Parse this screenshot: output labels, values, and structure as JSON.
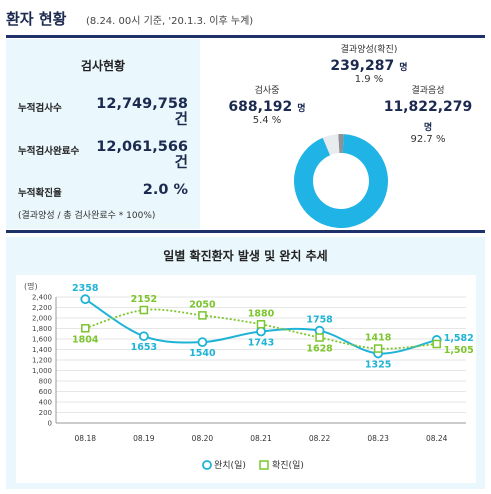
{
  "header": {
    "title": "환자 현황",
    "subtitle": "(8.24. 00시 기준, '20.1.3. 이후 누계)"
  },
  "test_stats": {
    "heading": "검사현황",
    "items": [
      {
        "label": "누적검사수",
        "value": "12,749,758",
        "unit": "건"
      },
      {
        "label": "누적검사완료수",
        "value": "12,061,566",
        "unit": "건"
      },
      {
        "label": "누적확진율",
        "value": "2.0 %"
      }
    ],
    "note": "(결과양성 / 총 검사완료수 * 100%)"
  },
  "pie": {
    "slices": [
      {
        "name": "결과음성",
        "value": "11,822,279",
        "unit": "명",
        "percent": "92.7 %",
        "pct": 92.7,
        "color": "#1fb3e6"
      },
      {
        "name": "검사중",
        "value": "688,192",
        "unit": "명",
        "percent": "5.4 %",
        "pct": 5.4,
        "color": "#e9ecef"
      },
      {
        "name": "결과양성(확진)",
        "value": "239,287",
        "unit": "명",
        "percent": "1.9 %",
        "pct": 1.9,
        "color": "#8e9296"
      }
    ]
  },
  "chart_data": {
    "type": "line",
    "title": "일별 확진환자 발생 및 완치 추세",
    "ylabel": "(명)",
    "categories": [
      "08.18",
      "08.19",
      "08.20",
      "08.21",
      "08.22",
      "08.23",
      "08.24"
    ],
    "ylim": [
      0,
      2400
    ],
    "yticks": [
      "0",
      "200",
      "400",
      "600",
      "800",
      "1,000",
      "1,200",
      "1,400",
      "1,600",
      "1,800",
      "2,000",
      "2,200",
      "2,400"
    ],
    "series": [
      {
        "name": "완치(일)",
        "values": [
          2358,
          1653,
          1540,
          1743,
          1758,
          1325,
          1582
        ],
        "labels": [
          "2358",
          "1653",
          "1540",
          "1743",
          "1758",
          "1325",
          "1,582"
        ],
        "color": "#1fb3d6",
        "style": "solid"
      },
      {
        "name": "확진(일)",
        "values": [
          1804,
          2152,
          2050,
          1880,
          1628,
          1418,
          1505
        ],
        "labels": [
          "1804",
          "2152",
          "2050",
          "1880",
          "1628",
          "1418",
          "1,505"
        ],
        "color": "#7cc52d",
        "style": "dotted"
      }
    ],
    "legend_position": "bottom"
  }
}
